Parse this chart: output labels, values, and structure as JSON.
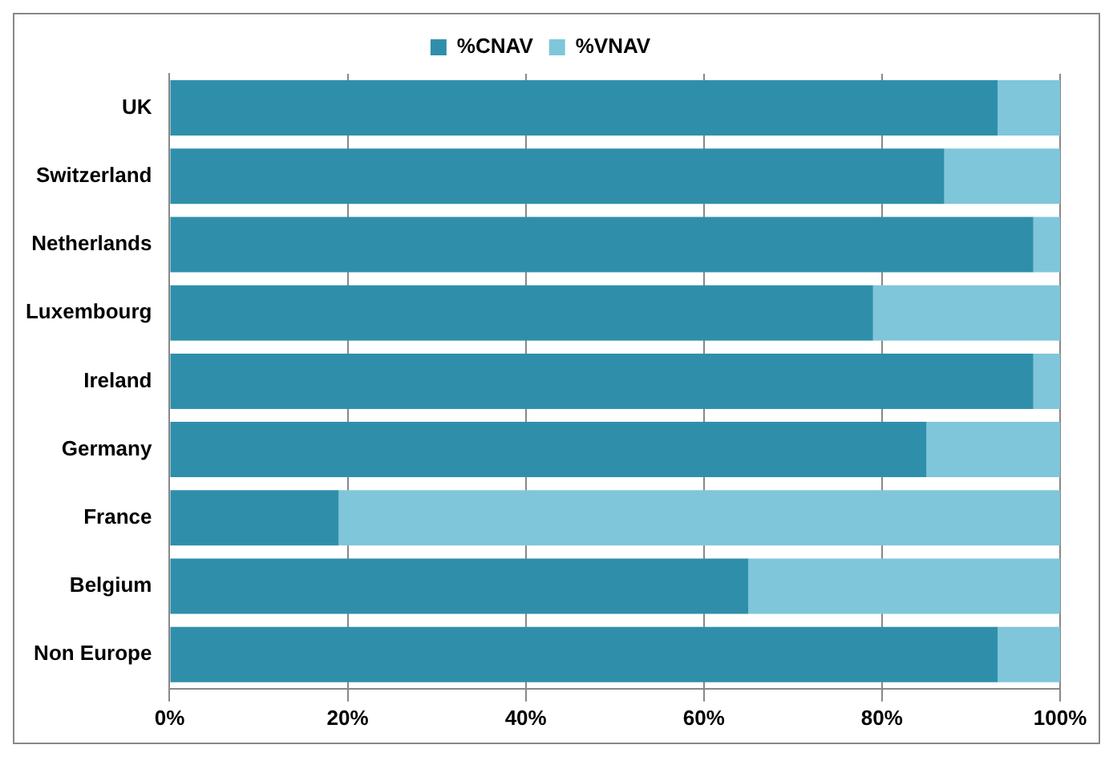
{
  "chart_data": {
    "type": "bar",
    "orientation": "horizontal",
    "stacked": true,
    "legend": "top",
    "grid": "x",
    "categories": [
      "UK",
      "Switzerland",
      "Netherlands",
      "Luxembourg",
      "Ireland",
      "Germany",
      "France",
      "Belgium",
      "Non Europe"
    ],
    "series": [
      {
        "name": "%CNAV",
        "color": "#2f8fab",
        "values": [
          93,
          87,
          97,
          79,
          97,
          85,
          19,
          65,
          93
        ]
      },
      {
        "name": "%VNAV",
        "color": "#7fc6db",
        "values": [
          7,
          13,
          3,
          21,
          3,
          15,
          81,
          35,
          7
        ]
      }
    ],
    "xlim": [
      0,
      100
    ],
    "xticks": [
      {
        "value": 0,
        "label": "0%"
      },
      {
        "value": 20,
        "label": "20%"
      },
      {
        "value": 40,
        "label": "40%"
      },
      {
        "value": 60,
        "label": "60%"
      },
      {
        "value": 80,
        "label": "80%"
      },
      {
        "value": 100,
        "label": "100%"
      }
    ]
  }
}
